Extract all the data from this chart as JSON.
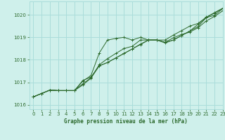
{
  "title": "Graphe pression niveau de la mer (hPa)",
  "bg_color": "#cff0eb",
  "grid_color": "#aaddda",
  "line_color": "#2d6a2d",
  "xlim": [
    -0.5,
    23
  ],
  "ylim": [
    1015.8,
    1020.6
  ],
  "yticks": [
    1016,
    1017,
    1018,
    1019,
    1020
  ],
  "xticks": [
    0,
    1,
    2,
    3,
    4,
    5,
    6,
    7,
    8,
    9,
    10,
    11,
    12,
    13,
    14,
    15,
    16,
    17,
    18,
    19,
    20,
    21,
    22,
    23
  ],
  "lines": [
    [
      1016.35,
      1016.5,
      1016.65,
      1016.63,
      1016.63,
      1016.63,
      1017.05,
      1017.3,
      1018.3,
      1018.88,
      1018.95,
      1019.0,
      1018.88,
      1019.0,
      1018.88,
      1018.88,
      1018.88,
      1019.1,
      1019.3,
      1019.5,
      1019.62,
      1019.9,
      1020.1,
      1020.3
    ],
    [
      1016.35,
      1016.5,
      1016.65,
      1016.63,
      1016.63,
      1016.63,
      1016.93,
      1017.2,
      1017.78,
      1018.05,
      1018.28,
      1018.5,
      1018.6,
      1018.88,
      1018.88,
      1018.88,
      1018.75,
      1018.88,
      1019.08,
      1019.28,
      1019.58,
      1019.88,
      1020.08,
      1020.28
    ],
    [
      1016.35,
      1016.5,
      1016.65,
      1016.63,
      1016.63,
      1016.63,
      1016.88,
      1017.18,
      1017.73,
      1017.88,
      1018.08,
      1018.28,
      1018.48,
      1018.7,
      1018.88,
      1018.88,
      1018.78,
      1018.88,
      1019.08,
      1019.28,
      1019.48,
      1019.88,
      1019.98,
      1020.28
    ],
    [
      1016.35,
      1016.5,
      1016.65,
      1016.63,
      1016.63,
      1016.63,
      1017.08,
      1017.23,
      1017.73,
      1017.88,
      1018.08,
      1018.28,
      1018.48,
      1018.68,
      1018.88,
      1018.88,
      1018.78,
      1018.98,
      1019.13,
      1019.23,
      1019.43,
      1019.73,
      1019.93,
      1020.18
    ]
  ],
  "label_fontsize": 5.5,
  "tick_fontsize": 5.0
}
